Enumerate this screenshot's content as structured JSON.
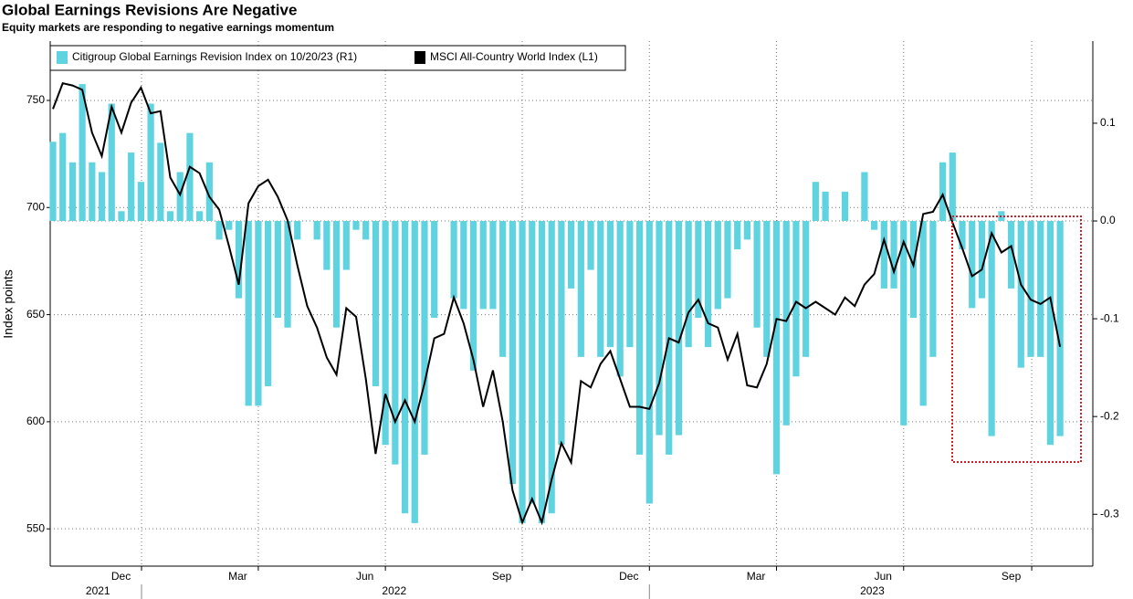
{
  "chart_data": {
    "type": "bar_line",
    "title": "Global Earnings Revisions Are Negative",
    "subtitle": "Equity markets are responding to negative earnings momentum",
    "y_label": "Index points",
    "xlim": [
      -0.28,
      106.35
    ],
    "xticks": [
      {
        "value": 9.06,
        "label": "Dec"
      },
      {
        "value": 21.0,
        "label": "Mar"
      },
      {
        "value": 34.0,
        "label": "Jun"
      },
      {
        "value": 48.0,
        "label": "Sep"
      },
      {
        "value": 61.0,
        "label": "Dec"
      },
      {
        "value": 74.0,
        "label": "Mar"
      },
      {
        "value": 87.0,
        "label": "Jun"
      },
      {
        "value": 100.1,
        "label": "Sep"
      }
    ],
    "year_labels": [
      {
        "value": 4.6,
        "label": "2021"
      },
      {
        "value": 34.9,
        "label": "2022"
      },
      {
        "value": 83.8,
        "label": "2023"
      }
    ],
    "ylim": [
      532.6,
      777.7
    ],
    "yticks": [
      550,
      600,
      650,
      700,
      750
    ],
    "y2lim": [
      -0.353,
      0.184
    ],
    "y2ticks": [
      -0.3,
      -0.2,
      -0.1,
      {
        "value": 0,
        "label": "0.0"
      },
      0.1
    ],
    "grid": true,
    "series": [
      {
        "name": "Citigroup Global Earnings Revision Index on 10/20/23 (R1)",
        "color": "#5fd3e0",
        "axis": "y2",
        "kind": "bar",
        "values": [
          0.081,
          0.09,
          0.06,
          0.14,
          0.06,
          0.05,
          0.12,
          0.01,
          0.07,
          0.04,
          0.12,
          0.08,
          0.01,
          0.05,
          0.09,
          0.01,
          0.06,
          -0.019,
          -0.009,
          -0.079,
          -0.189,
          -0.189,
          -0.169,
          -0.099,
          -0.109,
          -0.019,
          0,
          -0.019,
          -0.05,
          -0.109,
          -0.05,
          -0.009,
          -0.019,
          -0.169,
          -0.229,
          -0.249,
          -0.299,
          -0.309,
          -0.239,
          -0.099,
          0,
          -0.079,
          -0.09,
          -0.153,
          -0.09,
          -0.09,
          -0.139,
          -0.269,
          -0.309,
          -0.289,
          -0.309,
          -0.299,
          -0.229,
          -0.069,
          -0.139,
          -0.05,
          -0.139,
          -0.129,
          -0.159,
          -0.129,
          -0.239,
          -0.289,
          -0.219,
          -0.239,
          -0.219,
          -0.129,
          -0.099,
          -0.129,
          -0.09,
          -0.079,
          -0.029,
          -0.019,
          -0.109,
          -0.139,
          -0.259,
          -0.209,
          -0.159,
          -0.139,
          0.04,
          0.03,
          0,
          0.03,
          0,
          0.05,
          -0.009,
          -0.069,
          -0.069,
          -0.209,
          -0.099,
          -0.189,
          -0.139,
          0.06,
          0.07,
          -0.029,
          -0.089,
          -0.079,
          -0.22,
          0.01,
          -0.069,
          -0.15,
          -0.139,
          -0.139,
          -0.229,
          -0.22
        ]
      },
      {
        "name": "MSCI All-Country World Index (L1)",
        "color": "#000000",
        "axis": "y",
        "kind": "line",
        "values": [
          746,
          758,
          757,
          755,
          735,
          724,
          747,
          735,
          749,
          756,
          744,
          745,
          714,
          706,
          719,
          716,
          705,
          699,
          682,
          664,
          702,
          710,
          713,
          705,
          694,
          673,
          654,
          644,
          630,
          622,
          653,
          649,
          620,
          585,
          613,
          600,
          610,
          600,
          618,
          639,
          641,
          658,
          646,
          629,
          607,
          624,
          600,
          568,
          553,
          564,
          553,
          573,
          590,
          581,
          619,
          616,
          627,
          633,
          620,
          607,
          607,
          606,
          618,
          639,
          637,
          651,
          657,
          646,
          644,
          629,
          641,
          617,
          616,
          627,
          648,
          647,
          656,
          653,
          656,
          653,
          650,
          658,
          654,
          664,
          669,
          685,
          670,
          684,
          673,
          697,
          698,
          706,
          693,
          681,
          668,
          671,
          688,
          679,
          682,
          664,
          657,
          655,
          658,
          635
        ]
      }
    ]
  }
}
